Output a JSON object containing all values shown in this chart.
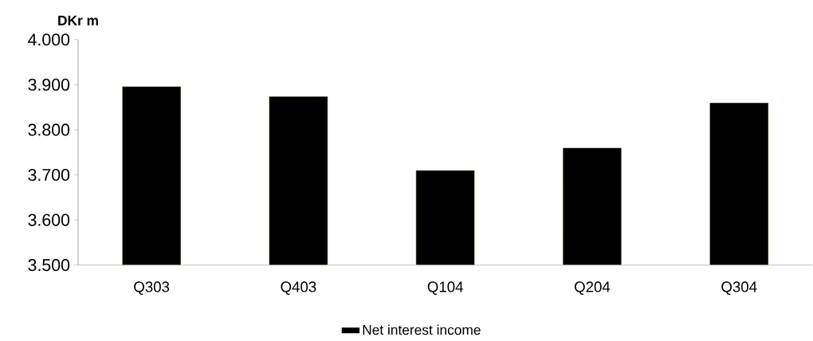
{
  "chart_data": {
    "type": "bar",
    "ylabel": "DKr m",
    "categories": [
      "Q303",
      "Q403",
      "Q104",
      "Q204",
      "Q304"
    ],
    "series": [
      {
        "name": "Net interest income",
        "color": "#000000",
        "values": [
          3896,
          3874,
          3710,
          3760,
          3860
        ]
      }
    ],
    "ylim": [
      3500,
      4000
    ],
    "yticks": [
      {
        "value": 3500,
        "label": "3.500"
      },
      {
        "value": 3600,
        "label": "3.600"
      },
      {
        "value": 3700,
        "label": "3.700"
      },
      {
        "value": 3800,
        "label": "3.800"
      },
      {
        "value": 3900,
        "label": "3.900"
      },
      {
        "value": 4000,
        "label": "4.000"
      }
    ],
    "legend": "bottom"
  }
}
